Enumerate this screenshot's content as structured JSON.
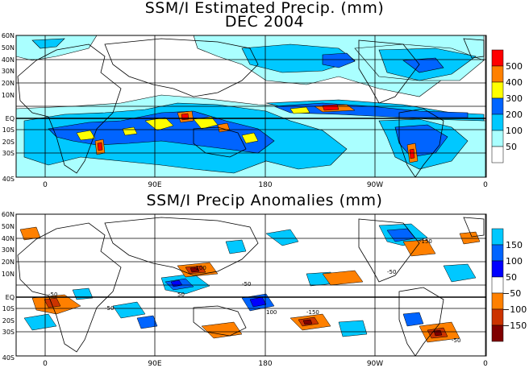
{
  "titles": {
    "main_line1": "SSM/I Estimated Precip. (mm)",
    "main_line2": "DEC 2004",
    "anomaly": "SSM/I Precip Anomalies (mm)"
  },
  "map_top": {
    "lat_labels": [
      "60N",
      "50N",
      "40N",
      "30N",
      "20N",
      "10N",
      "EQ",
      "10S",
      "20S",
      "30S",
      "40S"
    ],
    "lon_labels": [
      "0",
      "90E",
      "180",
      "90W",
      "0"
    ],
    "legend": {
      "labels": [
        "500",
        "400",
        "300",
        "200",
        "100",
        "50"
      ],
      "colors": [
        "#ff0000",
        "#ff8000",
        "#ffff00",
        "#0064ff",
        "#00c8ff",
        "#aaffff",
        "#ffffff"
      ]
    }
  },
  "map_bottom": {
    "lat_labels": [
      "60N",
      "50N",
      "40N",
      "30N",
      "20N",
      "10N",
      "EQ",
      "10S",
      "20S",
      "30S",
      "40S"
    ],
    "lon_labels": [
      "0",
      "90E",
      "180",
      "90W",
      "0"
    ],
    "legend": {
      "labels": [
        "150",
        "100",
        "50",
        "−50",
        "−100",
        "−150"
      ],
      "colors": [
        "#00c8ff",
        "#0064ff",
        "#0000ff",
        "#ffffff",
        "#ff8000",
        "#cc3300",
        "#800000"
      ]
    }
  }
}
